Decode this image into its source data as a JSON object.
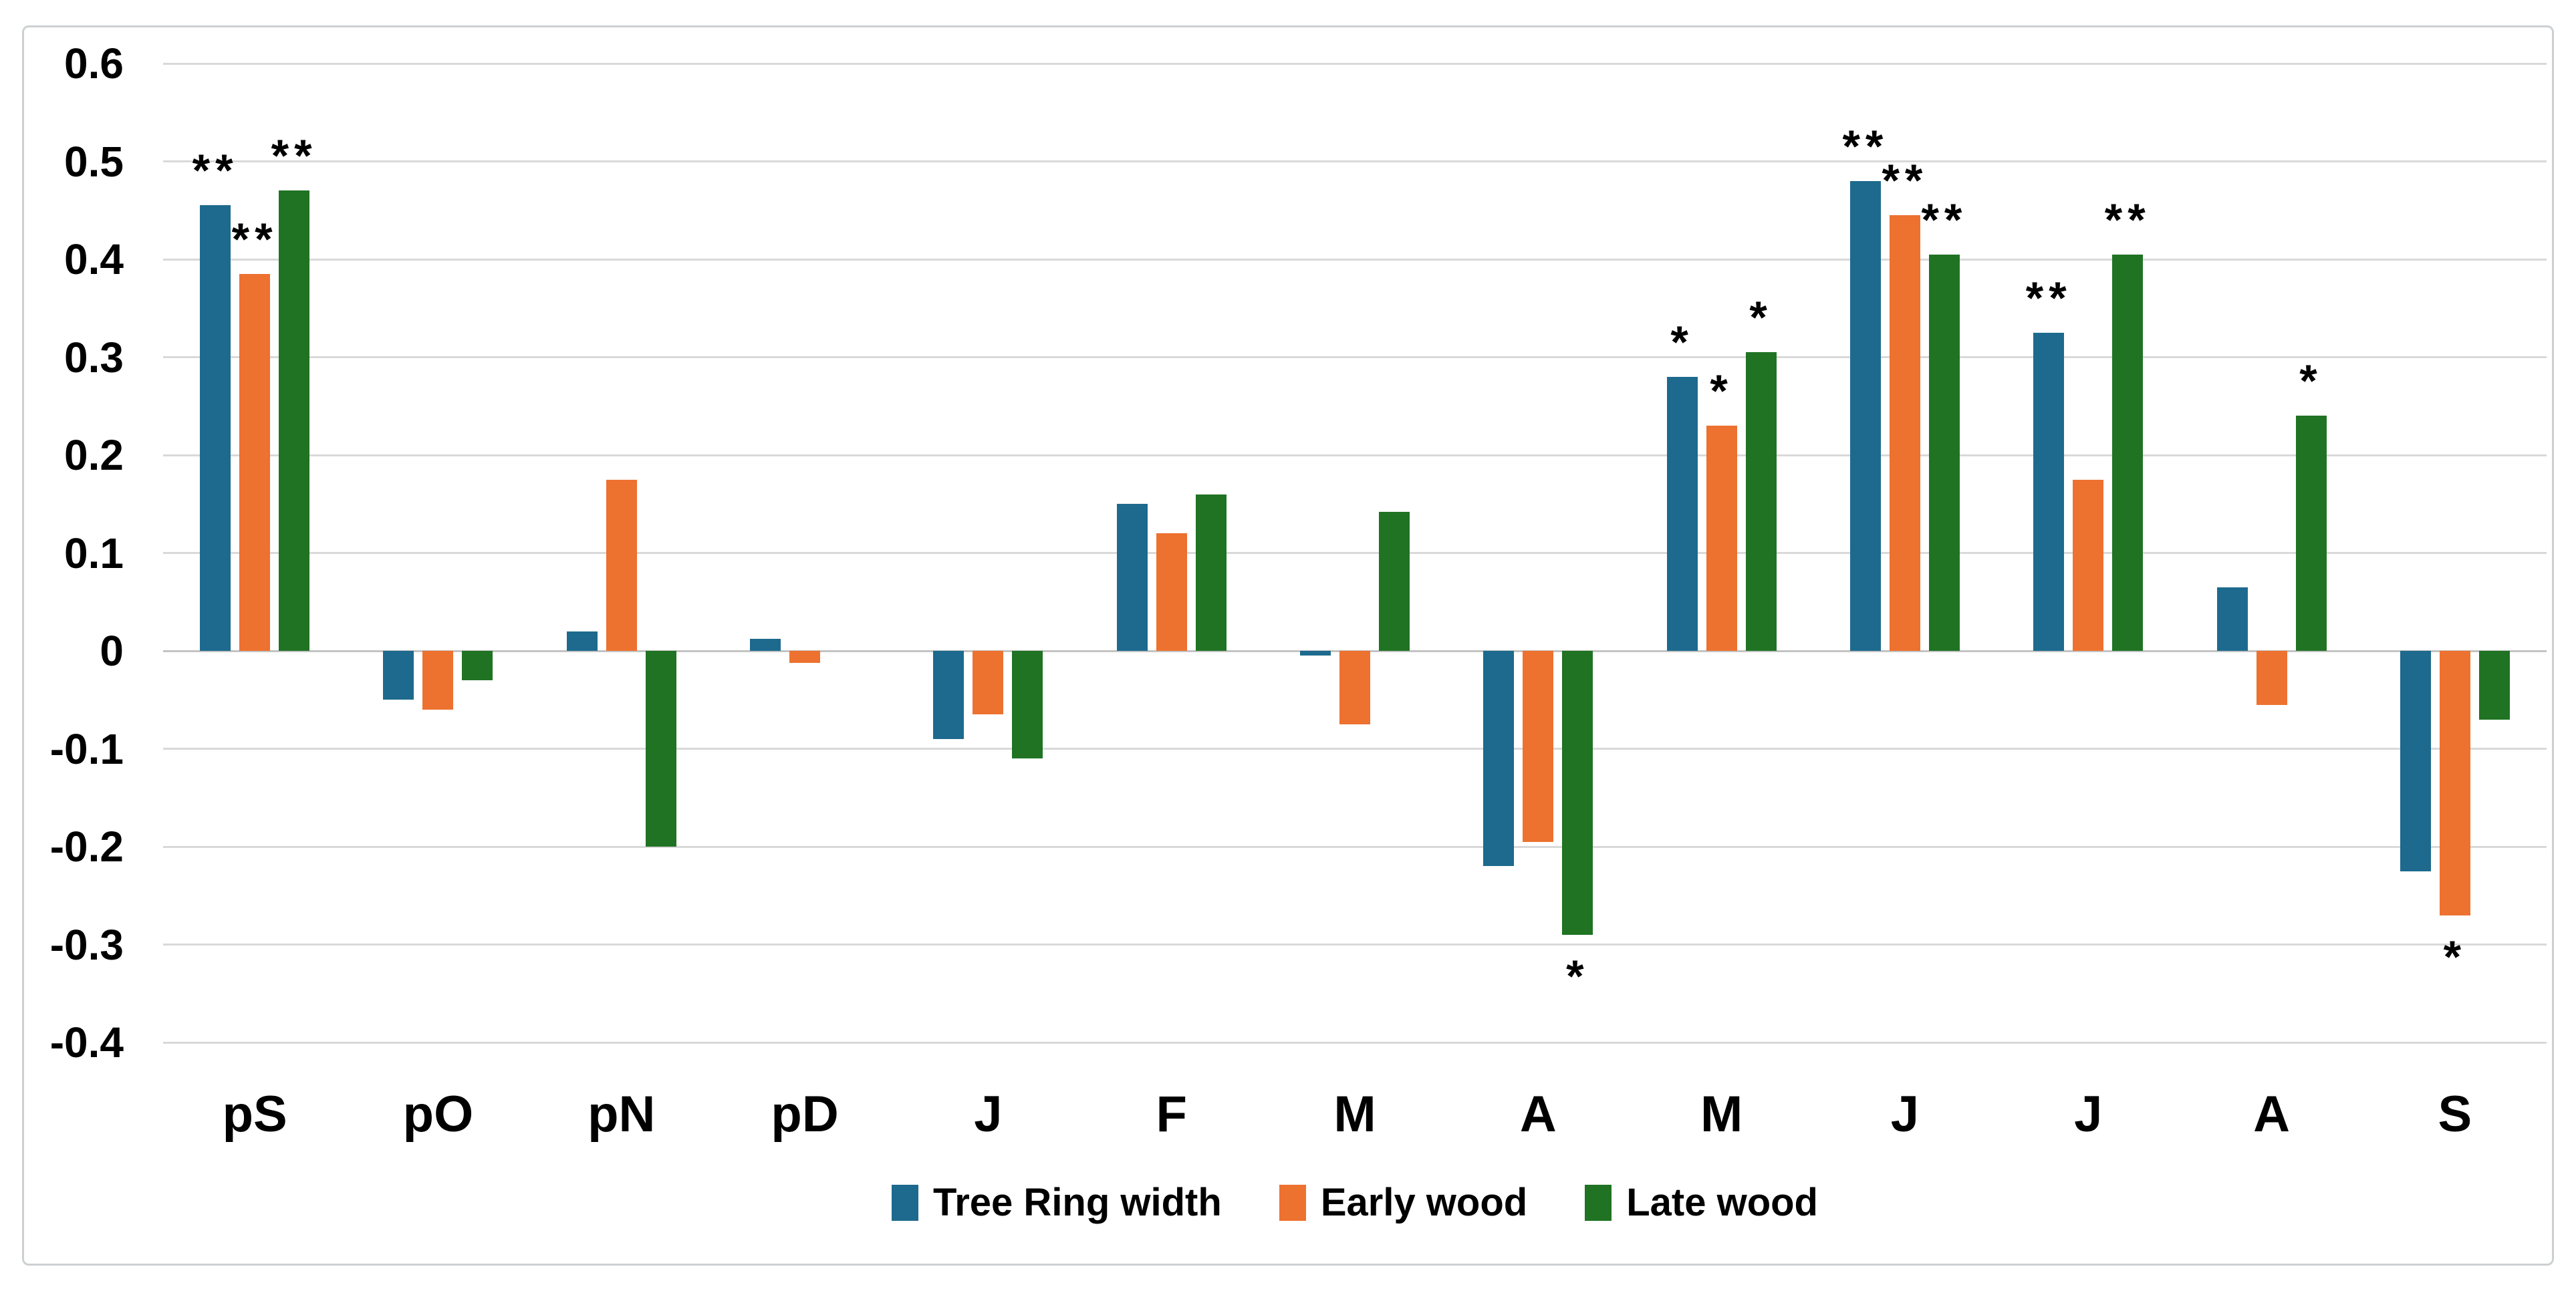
{
  "figure": {
    "background": "#ffffff",
    "border_color": "#cdd0d2",
    "grid_color": "#d9d9d9",
    "zero_line_color": "#c3c3c3",
    "text_color": "#000000"
  },
  "chart_data": {
    "type": "bar",
    "title": "",
    "xlabel": "",
    "ylabel": "",
    "categories": [
      "pS",
      "pO",
      "pN",
      "pD",
      "J",
      "F",
      "M",
      "A",
      "M",
      "J",
      "J",
      "A",
      "S"
    ],
    "series": [
      {
        "name": "Tree Ring width",
        "color": "#1d6a8e",
        "values": [
          0.455,
          -0.05,
          0.02,
          0.012,
          -0.09,
          0.15,
          -0.005,
          -0.22,
          0.28,
          0.48,
          0.325,
          0.065,
          -0.225
        ],
        "sig": [
          "**",
          "",
          "",
          "",
          "",
          "",
          "",
          "",
          "*",
          "**",
          "**",
          "",
          ""
        ]
      },
      {
        "name": "Early wood",
        "color": "#ed712f",
        "values": [
          0.385,
          -0.06,
          0.175,
          -0.012,
          -0.065,
          0.12,
          -0.075,
          -0.195,
          0.23,
          0.445,
          0.175,
          -0.055,
          -0.27
        ],
        "sig": [
          "**",
          "",
          "",
          "",
          "",
          "",
          "",
          "",
          "*",
          "**",
          "",
          "",
          "*"
        ]
      },
      {
        "name": "Late wood",
        "color": "#1f7323",
        "values": [
          0.47,
          -0.03,
          -0.2,
          0,
          -0.11,
          0.16,
          0.142,
          -0.29,
          0.305,
          0.405,
          0.405,
          0.24,
          -0.07
        ],
        "sig": [
          "**",
          "",
          "",
          "",
          "",
          "",
          "",
          "*",
          "*",
          "**",
          "**",
          "*",
          ""
        ]
      }
    ],
    "yticks": [
      "0.6",
      "0.5",
      "0.4",
      "0.3",
      "0.2",
      "0.1",
      "0",
      "-0.1",
      "-0.2",
      "-0.3",
      "-0.4"
    ],
    "ylim": [
      -0.4,
      0.6
    ],
    "ytick_step": 0.1,
    "grid": true,
    "legend_position": "bottom"
  }
}
